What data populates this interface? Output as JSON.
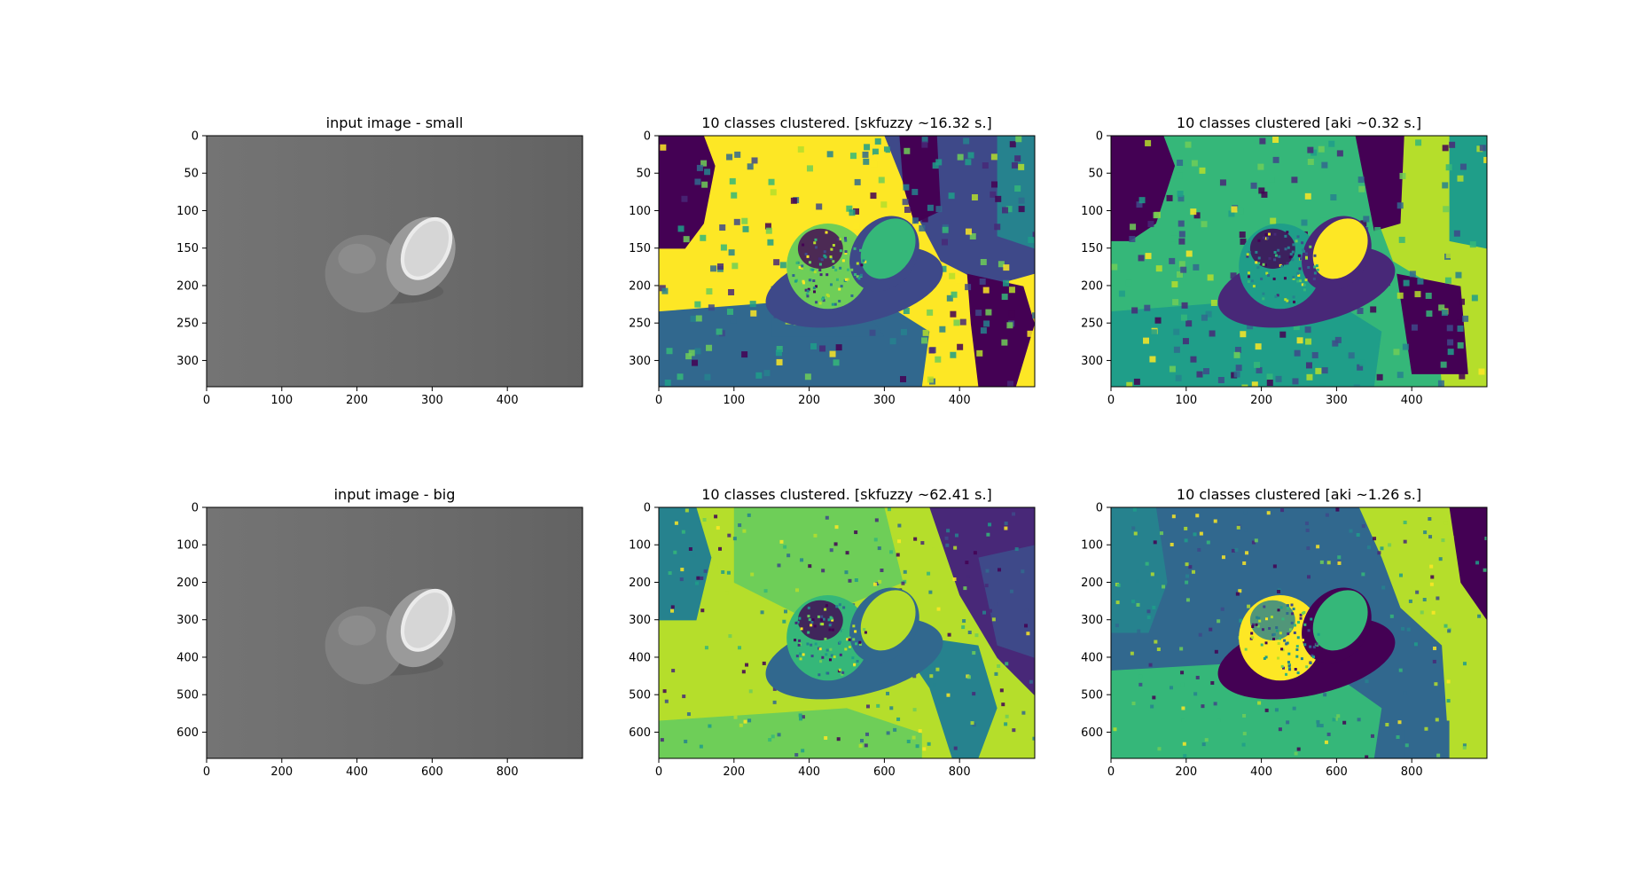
{
  "figure": {
    "colors": {
      "background": "#ffffff",
      "viridis": [
        "#440154",
        "#482878",
        "#3e4989",
        "#31688e",
        "#26828e",
        "#1f9e89",
        "#35b779",
        "#6ece58",
        "#b5de2b",
        "#fde725"
      ],
      "gray_background": "#6b6b6b",
      "orange_peel_gray": "#808080",
      "orange_flesh_gray": "#d6d6d6"
    }
  },
  "chart_data": [
    {
      "type": "heatmap",
      "title": "input image - small",
      "colormap": "gray",
      "content": "grayscale photo of a halved orange on a gray background",
      "xlim": [
        0,
        500
      ],
      "ylim": [
        335,
        0
      ],
      "xticks": [
        0,
        100,
        200,
        300,
        400
      ],
      "yticks": [
        0,
        50,
        100,
        150,
        200,
        250,
        300
      ]
    },
    {
      "type": "heatmap",
      "title": "10 classes clustered. [skfuzzy ~16.32 s.]",
      "colormap": "viridis",
      "classes": 10,
      "xlim": [
        0,
        500
      ],
      "ylim": [
        335,
        0
      ],
      "xticks": [
        0,
        100,
        200,
        300,
        400
      ],
      "yticks": [
        0,
        50,
        100,
        150,
        200,
        250,
        300
      ]
    },
    {
      "type": "heatmap",
      "title": "10 classes clustered [aki ~0.32 s.]",
      "colormap": "viridis",
      "classes": 10,
      "xlim": [
        0,
        500
      ],
      "ylim": [
        335,
        0
      ],
      "xticks": [
        0,
        100,
        200,
        300,
        400
      ],
      "yticks": [
        0,
        50,
        100,
        150,
        200,
        250,
        300
      ]
    },
    {
      "type": "heatmap",
      "title": "input image - big",
      "colormap": "gray",
      "content": "grayscale photo of a halved orange on a gray background",
      "xlim": [
        0,
        1000
      ],
      "ylim": [
        670,
        0
      ],
      "xticks": [
        0,
        200,
        400,
        600,
        800
      ],
      "yticks": [
        0,
        100,
        200,
        300,
        400,
        500,
        600
      ]
    },
    {
      "type": "heatmap",
      "title": "10 classes clustered. [skfuzzy ~62.41 s.]",
      "colormap": "viridis",
      "classes": 10,
      "xlim": [
        0,
        1000
      ],
      "ylim": [
        670,
        0
      ],
      "xticks": [
        0,
        200,
        400,
        600,
        800
      ],
      "yticks": [
        0,
        100,
        200,
        300,
        400,
        500,
        600
      ]
    },
    {
      "type": "heatmap",
      "title": "10 classes clustered [aki ~1.26 s.]",
      "colormap": "viridis",
      "classes": 10,
      "xlim": [
        0,
        1000
      ],
      "ylim": [
        670,
        0
      ],
      "xticks": [
        0,
        200,
        400,
        600,
        800
      ],
      "yticks": [
        0,
        100,
        200,
        300,
        400,
        500,
        600
      ]
    }
  ]
}
